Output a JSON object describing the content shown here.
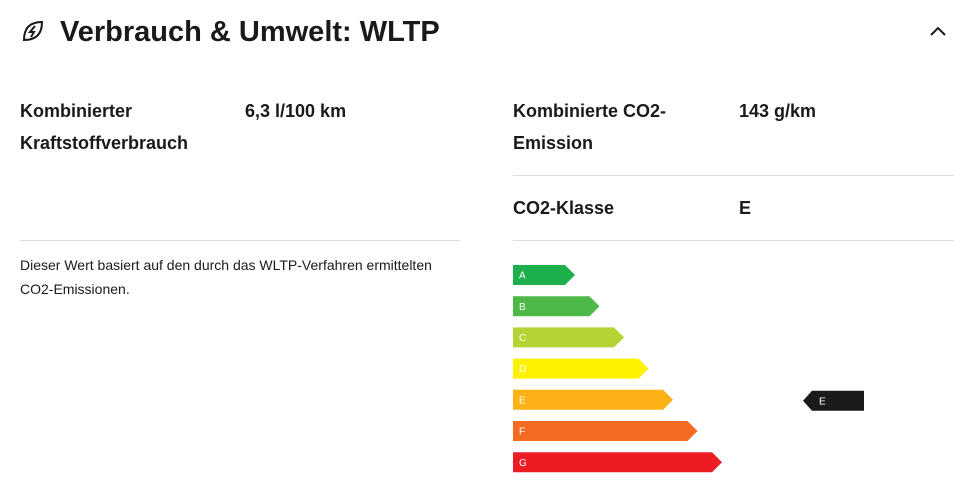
{
  "header": {
    "title": "Verbrauch & Umwelt: WLTP"
  },
  "left": {
    "rows": [
      {
        "label": "Kombinierter Kraftstoffverbrauch",
        "value": "6,3 l/100 km"
      }
    ],
    "note": "Dieser Wert basiert auf den durch das WLTP-Verfahren ermittelten CO2-Emissionen."
  },
  "right": {
    "rows": [
      {
        "label": "Kombinierte CO2-Emission",
        "value": "143 g/km"
      },
      {
        "label": "CO2-Klasse",
        "value": "E"
      }
    ]
  },
  "energy_label": {
    "classes": [
      {
        "letter": "A",
        "color": "#1daf4b"
      },
      {
        "letter": "B",
        "color": "#4db848"
      },
      {
        "letter": "C",
        "color": "#b6d334"
      },
      {
        "letter": "D",
        "color": "#fff200"
      },
      {
        "letter": "E",
        "color": "#fbb216"
      },
      {
        "letter": "F",
        "color": "#f36c21"
      },
      {
        "letter": "G",
        "color": "#ed1c24"
      }
    ],
    "current": "E"
  }
}
